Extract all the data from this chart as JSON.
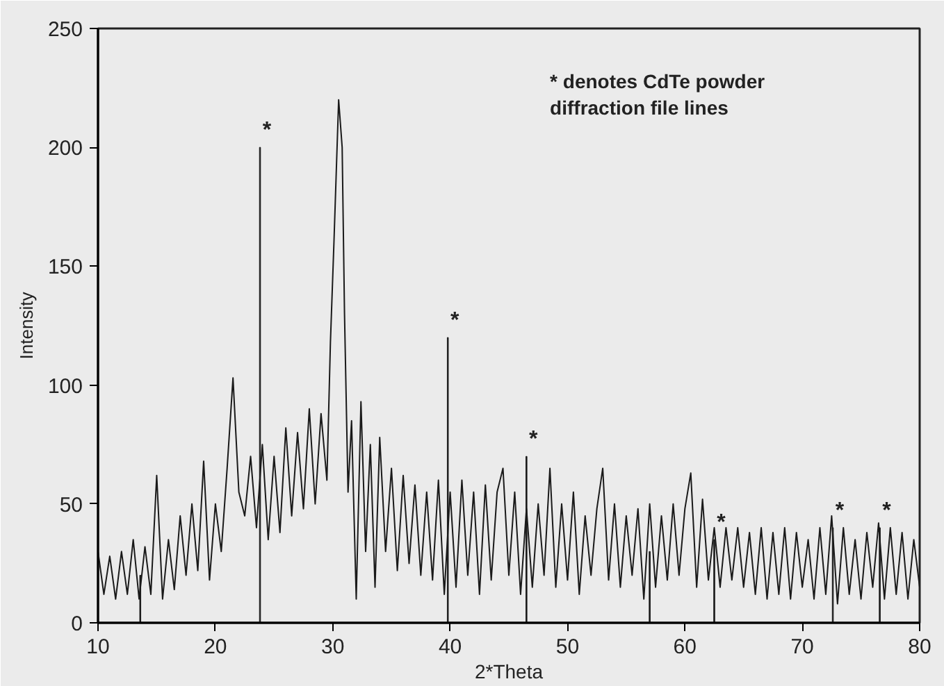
{
  "chart_data": {
    "type": "line",
    "xlabel": "2*Theta",
    "ylabel": "Intensity",
    "xlim": [
      10,
      80
    ],
    "ylim": [
      0,
      250
    ],
    "xticks": [
      10,
      20,
      30,
      40,
      50,
      60,
      70,
      80
    ],
    "yticks": [
      0,
      50,
      100,
      150,
      200,
      250
    ],
    "grid": false,
    "marker": "none",
    "line_style": "solid",
    "series": [
      {
        "color": "#1a1a1a",
        "x": [
          10,
          10.5,
          11,
          11.5,
          12,
          12.5,
          13,
          13.5,
          14,
          14.5,
          15,
          15.5,
          16,
          16.5,
          17,
          17.5,
          18,
          18.5,
          19,
          19.5,
          20,
          20.5,
          21,
          21.5,
          22,
          22.5,
          23,
          23.5,
          24,
          24.5,
          25,
          25.5,
          26,
          26.5,
          27,
          27.5,
          28,
          28.5,
          29,
          29.5,
          29.8,
          30.1,
          30.5,
          30.8,
          31.0,
          31.3,
          31.6,
          32,
          32.4,
          32.8,
          33.2,
          33.6,
          34,
          34.5,
          35,
          35.5,
          36,
          36.5,
          37,
          37.5,
          38,
          38.5,
          39,
          39.5,
          40,
          40.5,
          41,
          41.5,
          42,
          42.5,
          43,
          43.5,
          44,
          44.5,
          45,
          45.5,
          46,
          46.5,
          47,
          47.5,
          48,
          48.5,
          49,
          49.5,
          50,
          50.5,
          51,
          51.5,
          52,
          52.5,
          53,
          53.5,
          54,
          54.5,
          55,
          55.5,
          56,
          56.5,
          57,
          57.5,
          58,
          58.5,
          59,
          59.5,
          60,
          60.5,
          61,
          61.5,
          62,
          62.5,
          63,
          63.5,
          64,
          64.5,
          65,
          65.5,
          66,
          66.5,
          67,
          67.5,
          68,
          68.5,
          69,
          69.5,
          70,
          70.5,
          71,
          71.5,
          72,
          72.5,
          73,
          73.5,
          74,
          74.5,
          75,
          75.5,
          76,
          76.5,
          77,
          77.5,
          78,
          78.5,
          79,
          79.5,
          80
        ],
        "values": [
          30,
          12,
          28,
          10,
          30,
          12,
          35,
          10,
          32,
          12,
          62,
          10,
          35,
          14,
          45,
          20,
          50,
          22,
          68,
          18,
          50,
          30,
          65,
          103,
          55,
          45,
          70,
          40,
          75,
          35,
          70,
          38,
          82,
          45,
          80,
          48,
          90,
          50,
          88,
          60,
          118,
          160,
          220,
          200,
          130,
          55,
          85,
          10,
          93,
          30,
          75,
          15,
          78,
          30,
          65,
          22,
          62,
          25,
          58,
          20,
          55,
          18,
          60,
          12,
          55,
          15,
          60,
          20,
          55,
          12,
          58,
          18,
          55,
          65,
          20,
          55,
          12,
          48,
          15,
          50,
          20,
          65,
          15,
          50,
          18,
          55,
          12,
          45,
          20,
          48,
          65,
          18,
          50,
          15,
          45,
          20,
          48,
          10,
          50,
          15,
          45,
          18,
          50,
          20,
          48,
          63,
          15,
          52,
          18,
          40,
          15,
          40,
          18,
          40,
          15,
          38,
          12,
          40,
          10,
          38,
          12,
          40,
          10,
          38,
          15,
          35,
          10,
          40,
          12,
          45,
          8,
          40,
          12,
          35,
          10,
          38,
          15,
          42,
          10,
          40,
          12,
          38,
          10,
          35,
          15
        ]
      },
      {
        "type": "bar",
        "color": "#1a1a1a",
        "x": [
          13.6,
          23.8,
          39.8,
          46.5,
          57.0,
          62.5,
          72.6,
          76.6
        ],
        "values": [
          20,
          200,
          120,
          70,
          30,
          35,
          40,
          40
        ]
      }
    ],
    "annotations": [
      {
        "text": "*",
        "x": 23.8,
        "y": 200
      },
      {
        "text": "*",
        "x": 39.8,
        "y": 120
      },
      {
        "text": "*",
        "x": 46.5,
        "y": 70
      },
      {
        "text": "*",
        "x": 62.5,
        "y": 35
      },
      {
        "text": "*",
        "x": 72.6,
        "y": 40
      },
      {
        "text": "*",
        "x": 76.6,
        "y": 40
      },
      "* denotes CdTe powder\n  diffraction file lines"
    ]
  }
}
